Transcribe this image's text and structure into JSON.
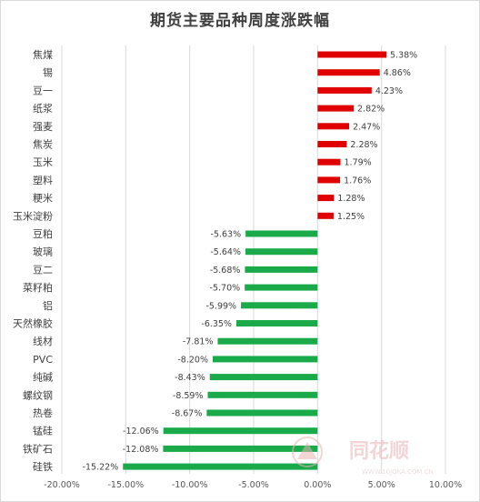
{
  "chart_data": {
    "type": "bar",
    "orientation": "horizontal",
    "title": "期货主要品种周度涨跌幅",
    "categories": [
      "焦煤",
      "锡",
      "豆一",
      "纸浆",
      "强麦",
      "焦炭",
      "玉米",
      "塑料",
      "粳米",
      "玉米淀粉",
      "豆粕",
      "玻璃",
      "豆二",
      "菜籽粕",
      "铝",
      "天然橡胶",
      "线材",
      "PVC",
      "纯碱",
      "螺纹钢",
      "热卷",
      "锰硅",
      "铁矿石",
      "硅铁"
    ],
    "values": [
      5.38,
      4.86,
      4.23,
      2.82,
      2.47,
      2.28,
      1.79,
      1.76,
      1.28,
      1.25,
      -5.63,
      -5.64,
      -5.68,
      -5.7,
      -5.99,
      -6.35,
      -7.81,
      -8.2,
      -8.43,
      -8.59,
      -8.67,
      -12.06,
      -12.08,
      -15.22
    ],
    "value_labels": [
      "5.38%",
      "4.86%",
      "4.23%",
      "2.82%",
      "2.47%",
      "2.28%",
      "1.79%",
      "1.76%",
      "1.28%",
      "1.25%",
      "-5.63%",
      "-5.64%",
      "-5.68%",
      "-5.70%",
      "-5.99%",
      "-6.35%",
      "-7.81%",
      "-8.20%",
      "-8.43%",
      "-8.59%",
      "-8.67%",
      "-12.06%",
      "-12.08%",
      "-15.22%"
    ],
    "xlim": [
      -20,
      10
    ],
    "xticks": [
      -20,
      -15,
      -10,
      -5,
      0,
      5,
      10
    ],
    "xtick_labels": [
      "-20.00%",
      "-15.00%",
      "-10.00%",
      "-5.00%",
      "0.00%",
      "5.00%",
      "10.00%"
    ],
    "grid": true,
    "legend": "none",
    "colors": {
      "positive": "#e00000",
      "negative": "#1aaa4a",
      "grid": "#d9d9d9"
    }
  },
  "watermark": {
    "brand": "同花顺",
    "url": "WWW.10JQKA.COM.CN"
  }
}
